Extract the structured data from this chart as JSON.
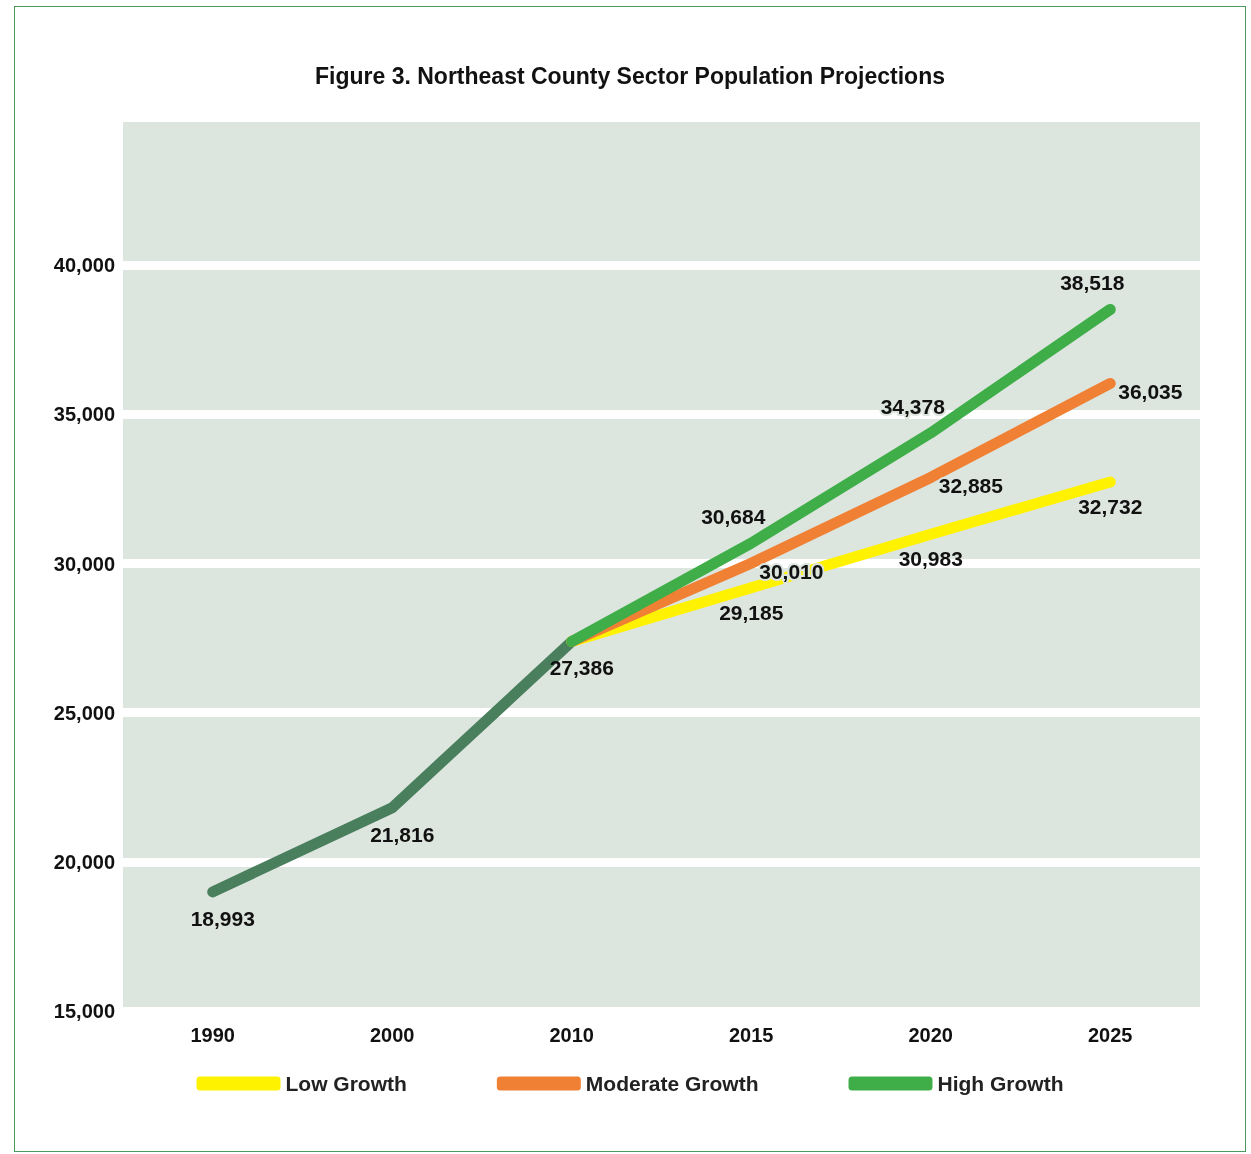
{
  "chart_data": {
    "type": "line",
    "title": "Figure 3. Northeast County Sector Population Projections",
    "categories": [
      "1990",
      "2000",
      "2010",
      "2015",
      "2020",
      "2025"
    ],
    "series": [
      {
        "color": "#4a7f5e",
        "values": [
          18993,
          21816,
          27386,
          null,
          null,
          null
        ],
        "value_labels": [
          "18,993",
          "21,816",
          "27,386",
          null,
          null,
          null
        ]
      },
      {
        "name": "Low Growth",
        "color": "#fff200",
        "values": [
          null,
          null,
          27386,
          29185,
          30983,
          32732
        ],
        "value_labels": [
          null,
          null,
          null,
          "29,185",
          "30,983",
          "32,732"
        ]
      },
      {
        "name": "Moderate Growth",
        "color": "#f08033",
        "values": [
          null,
          null,
          27386,
          30010,
          32885,
          36035
        ],
        "value_labels": [
          null,
          null,
          null,
          "30,010",
          "32,885",
          "36,035"
        ]
      },
      {
        "name": "High Growth",
        "color": "#3fae49",
        "values": [
          null,
          null,
          27386,
          30684,
          34378,
          38518
        ],
        "value_labels": [
          null,
          null,
          null,
          "30,684",
          "34,378",
          "38,518"
        ]
      }
    ],
    "ylim": [
      15000,
      44800
    ],
    "yticks": [
      {
        "value": 15000,
        "label": "15,000"
      },
      {
        "value": 20000,
        "label": "20,000"
      },
      {
        "value": 25000,
        "label": "25,000"
      },
      {
        "value": 30000,
        "label": "30,000"
      },
      {
        "value": 35000,
        "label": "35,000"
      },
      {
        "value": 40000,
        "label": "40,000"
      }
    ],
    "grid": "y",
    "legend": "bottom",
    "marker": "none",
    "line_style": "solid"
  }
}
